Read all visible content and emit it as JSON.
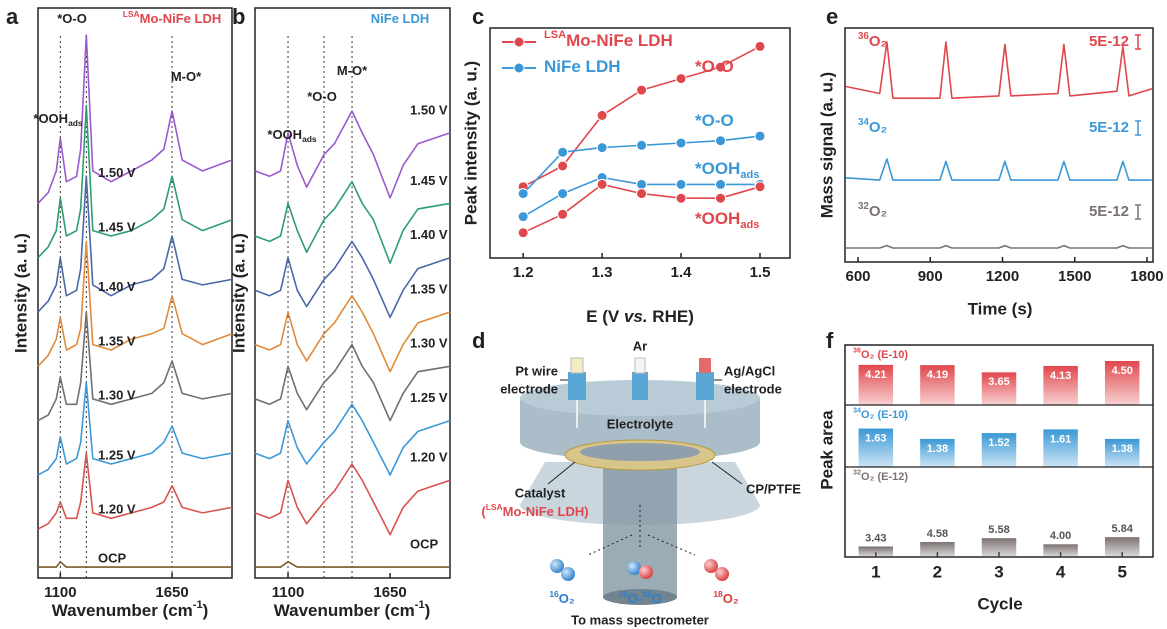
{
  "chart_data": [
    {
      "panel": "a",
      "type": "line",
      "x_label": [
        "Wavenumber (cm",
        {
          "sup": "-1"
        },
        ")"
      ],
      "y_label": "Intensity (a. u.)",
      "xlim": [
        990,
        1945
      ],
      "ylim": [
        0,
        105
      ],
      "xticks": [
        1100,
        1650
      ],
      "guides": [
        1100,
        1228,
        1650
      ],
      "annotations": [
        {
          "text": [
            "*O-O"
          ],
          "color": "#222222"
        },
        {
          "text": [
            {
              "sup": "LSA"
            },
            "Mo-NiFe LDH"
          ],
          "color": "#e0474c"
        },
        {
          "text": [
            "M-O*"
          ],
          "color": "#222222"
        },
        {
          "text": [
            "*OOH",
            {
              "sub": "ads"
            }
          ],
          "color": "#222222"
        }
      ],
      "x": [
        990,
        1040,
        1080,
        1100,
        1130,
        1180,
        1200,
        1228,
        1260,
        1350,
        1450,
        1550,
        1610,
        1650,
        1700,
        1800,
        1945
      ],
      "series": [
        {
          "name": "OCP",
          "color": "#7a5a2a",
          "values": [
            2,
            2,
            2,
            3,
            2,
            2,
            2,
            2,
            2,
            2,
            2,
            2,
            2,
            2,
            2,
            2,
            2
          ]
        },
        {
          "name": "1.20 V",
          "color": "#d9534f",
          "values": [
            9,
            10,
            12,
            14,
            11,
            11,
            14,
            23,
            12,
            11,
            12,
            13,
            14,
            17,
            13,
            12,
            13
          ]
        },
        {
          "name": "1.25 V",
          "color": "#3a9ad9",
          "values": [
            19,
            20,
            22,
            26,
            21,
            22,
            25,
            36,
            22,
            21,
            22,
            23,
            25,
            28,
            23,
            22,
            23
          ]
        },
        {
          "name": "1.30 V",
          "color": "#707070",
          "values": [
            29,
            30,
            33,
            37,
            32,
            32,
            36,
            49,
            33,
            32,
            33,
            34,
            36,
            40,
            34,
            33,
            34
          ]
        },
        {
          "name": "1.35 V",
          "color": "#e08a3c",
          "values": [
            39,
            41,
            44,
            48,
            42,
            43,
            46,
            62,
            43,
            42,
            44,
            45,
            46,
            52,
            45,
            43,
            45
          ]
        },
        {
          "name": "1.40 V",
          "color": "#4a68a8",
          "values": [
            49,
            51,
            54,
            59,
            52,
            53,
            57,
            74,
            54,
            52,
            54,
            55,
            57,
            63,
            55,
            54,
            55
          ]
        },
        {
          "name": "1.45 V",
          "color": "#2e9e6e",
          "values": [
            59,
            61,
            64,
            70,
            63,
            64,
            68,
            87,
            64,
            63,
            64,
            66,
            68,
            74,
            66,
            64,
            66
          ]
        },
        {
          "name": "1.50 V",
          "color": "#9b59d0",
          "values": [
            69,
            71,
            75,
            81,
            73,
            74,
            79,
            100,
            75,
            73,
            75,
            77,
            79,
            86,
            77,
            75,
            77
          ]
        }
      ]
    },
    {
      "panel": "b",
      "type": "line",
      "x_label": [
        "Wavenumber (cm",
        {
          "sup": "-1"
        },
        ")"
      ],
      "y_label": "Intensity (a. u.)",
      "xlim": [
        922,
        1973
      ],
      "ylim": [
        0,
        105
      ],
      "xticks": [
        1100,
        1650
      ],
      "guides": [
        1100,
        1294,
        1445
      ],
      "annotations": [
        {
          "text": [
            "NiFe LDH"
          ],
          "color": "#3a98d6"
        },
        {
          "text": [
            "*O-O"
          ],
          "color": "#222222"
        },
        {
          "text": [
            "M-O*"
          ],
          "color": "#222222"
        },
        {
          "text": [
            "*OOH",
            {
              "sub": "ads"
            }
          ],
          "color": "#222222"
        }
      ],
      "x": [
        922,
        1000,
        1060,
        1100,
        1150,
        1200,
        1294,
        1350,
        1445,
        1500,
        1560,
        1650,
        1720,
        1800,
        1973
      ],
      "series": [
        {
          "name": "OCP",
          "color": "#7a5a2a",
          "values": [
            2,
            2,
            2,
            3,
            2,
            2,
            2,
            2,
            2,
            2,
            2,
            2,
            2,
            2,
            2
          ]
        },
        {
          "name": "1.20 V",
          "color": "#d9534f",
          "values": [
            12,
            11,
            12,
            18,
            13,
            10,
            14,
            16,
            21,
            18,
            14,
            8,
            13,
            16,
            18
          ]
        },
        {
          "name": "1.25 V",
          "color": "#3a9ad9",
          "values": [
            23,
            22,
            23,
            29,
            24,
            21,
            25,
            27,
            32,
            29,
            25,
            19,
            24,
            27,
            29
          ]
        },
        {
          "name": "1.30 V",
          "color": "#707070",
          "values": [
            33,
            32,
            33,
            39,
            34,
            31,
            36,
            38,
            43,
            39,
            36,
            29,
            34,
            38,
            39
          ]
        },
        {
          "name": "1.35 V",
          "color": "#e08a3c",
          "values": [
            43,
            42,
            43,
            49,
            43,
            40,
            45,
            47,
            52,
            49,
            45,
            38,
            43,
            47,
            49
          ]
        },
        {
          "name": "1.40 V",
          "color": "#4a68a8",
          "values": [
            53,
            52,
            53,
            59,
            53,
            50,
            55,
            57,
            62,
            59,
            55,
            48,
            53,
            57,
            59
          ]
        },
        {
          "name": "1.45 V",
          "color": "#2e9e6e",
          "values": [
            63,
            62,
            63,
            69,
            64,
            60,
            66,
            68,
            73,
            69,
            66,
            58,
            64,
            68,
            69
          ]
        },
        {
          "name": "1.50 V",
          "color": "#9b59d0",
          "values": [
            75,
            74,
            75,
            82,
            76,
            72,
            78,
            80,
            86,
            82,
            78,
            70,
            76,
            80,
            82
          ]
        }
      ]
    },
    {
      "panel": "c",
      "type": "line",
      "markers": true,
      "x_label": [
        "E (V ",
        {
          "it": "vs."
        },
        " RHE)"
      ],
      "y_label": "Peak intensity (a. u.)",
      "xlim": [
        1.158,
        1.538
      ],
      "ylim": [
        0,
        100
      ],
      "xticks": [
        1.2,
        1.3,
        1.4,
        1.5
      ],
      "legend": [
        {
          "name": [
            {
              "sup": "LSA"
            },
            "Mo-NiFe LDH"
          ],
          "color": "#e0474c"
        },
        {
          "name": [
            "NiFe LDH"
          ],
          "color": "#3a98d6"
        }
      ],
      "x": [
        1.2,
        1.25,
        1.3,
        1.35,
        1.4,
        1.45,
        1.5
      ],
      "series": [
        {
          "name": [
            "*O-O"
          ],
          "color": "#e0474c",
          "values": [
            31,
            40,
            62,
            73,
            78,
            83,
            92
          ]
        },
        {
          "name": [
            "*O-O"
          ],
          "color": "#3a98d6",
          "values": [
            28,
            46,
            48,
            49,
            50,
            51,
            53
          ]
        },
        {
          "name": [
            "*OOH",
            {
              "sub": "ads"
            }
          ],
          "color": "#3a98d6",
          "values": [
            18,
            28,
            35,
            32,
            32,
            32,
            32
          ]
        },
        {
          "name": [
            "*OOH",
            {
              "sub": "ads"
            }
          ],
          "color": "#e0474c",
          "values": [
            11,
            19,
            32,
            28,
            26,
            26,
            31
          ]
        }
      ]
    },
    {
      "panel": "e",
      "type": "line",
      "x_label": "Time (s)",
      "y_label": "Mass signal (a. u.)",
      "xlim": [
        546,
        1825
      ],
      "ylim": [
        0,
        100
      ],
      "xticks": [
        600,
        900,
        1200,
        1500,
        1800
      ],
      "x": [
        550,
        690,
        720,
        745,
        940,
        965,
        990,
        1185,
        1210,
        1235,
        1430,
        1455,
        1480,
        1675,
        1700,
        1725,
        1820
      ],
      "series": [
        {
          "name": [
            {
              "sup": "36"
            },
            "O₂"
          ],
          "color": "#e0474c",
          "scale_label": "5E-12",
          "values": [
            75,
            72,
            94,
            70,
            70,
            94,
            70,
            71,
            93,
            71,
            72,
            93,
            71,
            73,
            92,
            71,
            74
          ]
        },
        {
          "name": [
            {
              "sup": "34"
            },
            "O₂"
          ],
          "color": "#3a98d6",
          "scale_label": "5E-12",
          "values": [
            36,
            35,
            44,
            35,
            35,
            43,
            35,
            35,
            43,
            35,
            35,
            43,
            35,
            35,
            43,
            35,
            35
          ]
        },
        {
          "name": [
            {
              "sup": "32"
            },
            "O₂"
          ],
          "color": "#7d7272",
          "scale_label": "5E-12",
          "values": [
            6,
            6,
            7,
            6,
            6,
            7,
            6,
            6,
            7,
            6,
            6,
            7,
            6,
            6,
            7,
            6,
            6
          ]
        }
      ]
    },
    {
      "panel": "f",
      "type": "bar",
      "x_label": "Cycle",
      "y_label": "Peak area",
      "categories": [
        "1",
        "2",
        "3",
        "4",
        "5"
      ],
      "panels": [
        {
          "name": [
            {
              "sup": "36"
            },
            "O₂ (E-10)"
          ],
          "color": "#e0474c",
          "ylim": [
            1.2,
            5.7
          ],
          "values": [
            4.21,
            4.19,
            3.65,
            4.13,
            4.5
          ],
          "value_labels": [
            "4.21",
            "4.19",
            "3.65",
            "4.13",
            "4.50"
          ]
        },
        {
          "name": [
            {
              "sup": "34"
            },
            "O₂ (E-10)"
          ],
          "color": "#3a98d6",
          "ylim": [
            0.7,
            2.2
          ],
          "values": [
            1.63,
            1.38,
            1.52,
            1.61,
            1.38
          ],
          "value_labels": [
            "1.63",
            "1.38",
            "1.52",
            "1.61",
            "1.38"
          ]
        },
        {
          "name": [
            {
              "sup": "32"
            },
            "O₂ (E-12)"
          ],
          "color": "#7d7272",
          "ylim": [
            0.7,
            24
          ],
          "values": [
            3.43,
            4.58,
            5.58,
            4.0,
            5.84
          ],
          "value_labels": [
            "3.43",
            "4.58",
            "5.58",
            "4.00",
            "5.84"
          ]
        }
      ]
    }
  ],
  "diagram": {
    "panel": "d",
    "ar": "Ar",
    "pt_wire": [
      "Pt wire",
      "electrode"
    ],
    "ag_agcl": [
      "Ag/AgCl",
      "electrode"
    ],
    "electrolyte": "Electrolyte",
    "cp_ptfe": "CP/PTFE",
    "catalyst": "Catalyst",
    "catalyst_name": [
      "(",
      {
        "sup": "LSA"
      },
      "Mo-NiFe LDH)"
    ],
    "o16": [
      {
        "sup": "16"
      },
      "O₂"
    ],
    "o16_18": [
      {
        "sup": "16"
      },
      "O-",
      {
        "sup": "18"
      },
      "O"
    ],
    "o18": [
      {
        "sup": "18"
      },
      "O₂"
    ],
    "destination": "To mass spectrometer"
  }
}
